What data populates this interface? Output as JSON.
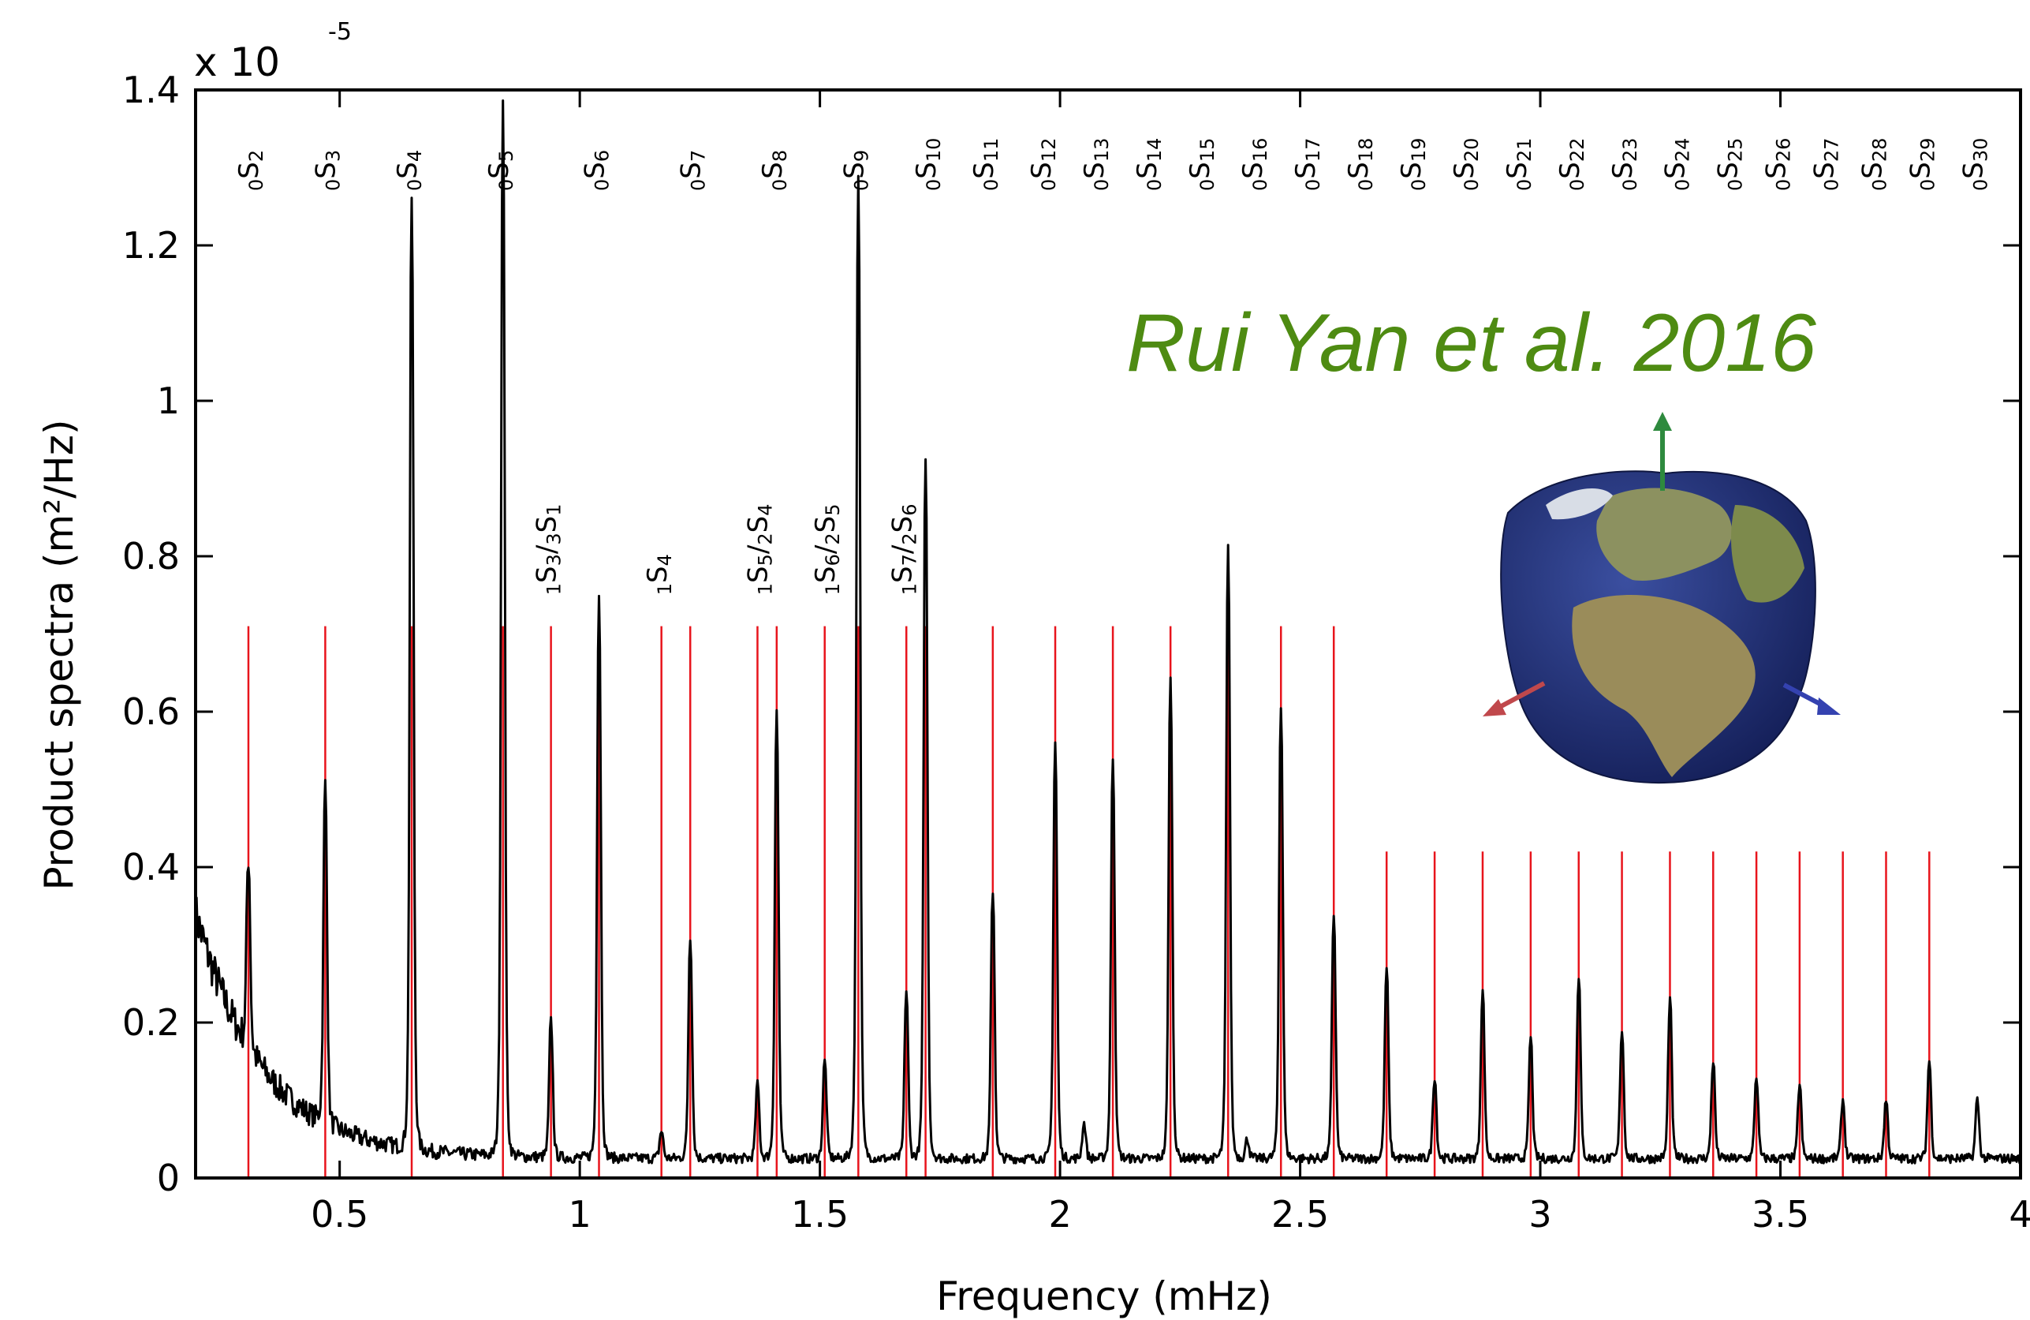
{
  "chart_data": {
    "type": "line",
    "title": "",
    "xlabel": "Frequency (mHz)",
    "ylabel": "Product spectra (m²/Hz)",
    "y_scale_label": "x 10",
    "y_scale_exponent": "-5",
    "xlim": [
      0.2,
      4.0
    ],
    "ylim": [
      0,
      1.4
    ],
    "x_ticks": [
      {
        "value": 0.5,
        "label": "0.5"
      },
      {
        "value": 1.0,
        "label": "1"
      },
      {
        "value": 1.5,
        "label": "1.5"
      },
      {
        "value": 2.0,
        "label": "2"
      },
      {
        "value": 2.5,
        "label": "2.5"
      },
      {
        "value": 3.0,
        "label": "3"
      },
      {
        "value": 3.5,
        "label": "3.5"
      },
      {
        "value": 4.0,
        "label": "4"
      }
    ],
    "y_ticks": [
      {
        "value": 0,
        "label": "0"
      },
      {
        "value": 0.2,
        "label": "0.2"
      },
      {
        "value": 0.4,
        "label": "0.4"
      },
      {
        "value": 0.6,
        "label": "0.6"
      },
      {
        "value": 0.8,
        "label": "0.8"
      },
      {
        "value": 1.0,
        "label": "1"
      },
      {
        "value": 1.2,
        "label": "1.2"
      },
      {
        "value": 1.4,
        "label": "1.4"
      }
    ],
    "grid": false,
    "annotation": "Rui Yan et al. 2016",
    "background_curve": {
      "start": 0.34,
      "decay": 0.14,
      "floor": 0.025
    },
    "peaks": [
      {
        "x": 0.31,
        "y": 0.27
      },
      {
        "x": 0.47,
        "y": 0.46
      },
      {
        "x": 0.65,
        "y": 1.25
      },
      {
        "x": 0.84,
        "y": 1.38
      },
      {
        "x": 0.94,
        "y": 0.2
      },
      {
        "x": 1.04,
        "y": 0.75
      },
      {
        "x": 1.17,
        "y": 0.06
      },
      {
        "x": 1.23,
        "y": 0.31
      },
      {
        "x": 1.37,
        "y": 0.12
      },
      {
        "x": 1.41,
        "y": 0.6
      },
      {
        "x": 1.51,
        "y": 0.15
      },
      {
        "x": 1.58,
        "y": 1.29
      },
      {
        "x": 1.68,
        "y": 0.24
      },
      {
        "x": 1.72,
        "y": 0.93
      },
      {
        "x": 1.86,
        "y": 0.37
      },
      {
        "x": 1.99,
        "y": 0.56
      },
      {
        "x": 2.05,
        "y": 0.07
      },
      {
        "x": 2.11,
        "y": 0.54
      },
      {
        "x": 2.23,
        "y": 0.64
      },
      {
        "x": 2.35,
        "y": 0.81
      },
      {
        "x": 2.39,
        "y": 0.05
      },
      {
        "x": 2.46,
        "y": 0.61
      },
      {
        "x": 2.57,
        "y": 0.34
      },
      {
        "x": 2.68,
        "y": 0.27
      },
      {
        "x": 2.78,
        "y": 0.13
      },
      {
        "x": 2.88,
        "y": 0.24
      },
      {
        "x": 2.98,
        "y": 0.18
      },
      {
        "x": 3.08,
        "y": 0.26
      },
      {
        "x": 3.17,
        "y": 0.19
      },
      {
        "x": 3.27,
        "y": 0.23
      },
      {
        "x": 3.36,
        "y": 0.15
      },
      {
        "x": 3.45,
        "y": 0.13
      },
      {
        "x": 3.54,
        "y": 0.12
      },
      {
        "x": 3.63,
        "y": 0.1
      },
      {
        "x": 3.72,
        "y": 0.1
      },
      {
        "x": 3.81,
        "y": 0.15
      },
      {
        "x": 3.91,
        "y": 0.1
      }
    ],
    "reference_lines": [
      {
        "x": 0.31,
        "top": 0.71
      },
      {
        "x": 0.47,
        "top": 0.71
      },
      {
        "x": 0.65,
        "top": 0.71
      },
      {
        "x": 0.84,
        "top": 0.71
      },
      {
        "x": 0.94,
        "top": 0.71
      },
      {
        "x": 1.04,
        "top": 0.71
      },
      {
        "x": 1.17,
        "top": 0.71
      },
      {
        "x": 1.23,
        "top": 0.71
      },
      {
        "x": 1.37,
        "top": 0.71
      },
      {
        "x": 1.41,
        "top": 0.71
      },
      {
        "x": 1.51,
        "top": 0.71
      },
      {
        "x": 1.58,
        "top": 0.71
      },
      {
        "x": 1.68,
        "top": 0.71
      },
      {
        "x": 1.72,
        "top": 0.71
      },
      {
        "x": 1.86,
        "top": 0.71
      },
      {
        "x": 1.99,
        "top": 0.71
      },
      {
        "x": 2.11,
        "top": 0.71
      },
      {
        "x": 2.23,
        "top": 0.71
      },
      {
        "x": 2.35,
        "top": 0.71
      },
      {
        "x": 2.46,
        "top": 0.71
      },
      {
        "x": 2.57,
        "top": 0.71
      },
      {
        "x": 2.68,
        "top": 0.42
      },
      {
        "x": 2.78,
        "top": 0.42
      },
      {
        "x": 2.88,
        "top": 0.42
      },
      {
        "x": 2.98,
        "top": 0.42
      },
      {
        "x": 3.08,
        "top": 0.42
      },
      {
        "x": 3.17,
        "top": 0.42
      },
      {
        "x": 3.27,
        "top": 0.42
      },
      {
        "x": 3.36,
        "top": 0.42
      },
      {
        "x": 3.45,
        "top": 0.42
      },
      {
        "x": 3.54,
        "top": 0.42
      },
      {
        "x": 3.63,
        "top": 0.42
      },
      {
        "x": 3.72,
        "top": 0.42
      },
      {
        "x": 3.81,
        "top": 0.42
      }
    ],
    "mode_labels": [
      {
        "x": 0.33,
        "y": 1.27,
        "pre": "0",
        "main": "S",
        "sub": "2"
      },
      {
        "x": 0.49,
        "y": 1.27,
        "pre": "0",
        "main": "S",
        "sub": "3"
      },
      {
        "x": 0.66,
        "y": 1.27,
        "pre": "0",
        "main": "S",
        "sub": "4"
      },
      {
        "x": 0.85,
        "y": 1.27,
        "pre": "0",
        "main": "S",
        "sub": "5"
      },
      {
        "x": 1.05,
        "y": 1.27,
        "pre": "0",
        "main": "S",
        "sub": "6"
      },
      {
        "x": 1.25,
        "y": 1.27,
        "pre": "0",
        "main": "S",
        "sub": "7"
      },
      {
        "x": 1.42,
        "y": 1.27,
        "pre": "0",
        "main": "S",
        "sub": "8"
      },
      {
        "x": 1.59,
        "y": 1.27,
        "pre": "0",
        "main": "S",
        "sub": "9"
      },
      {
        "x": 1.74,
        "y": 1.27,
        "pre": "0",
        "main": "S",
        "sub": "10"
      },
      {
        "x": 1.86,
        "y": 1.27,
        "pre": "0",
        "main": "S",
        "sub": "11"
      },
      {
        "x": 1.98,
        "y": 1.27,
        "pre": "0",
        "main": "S",
        "sub": "12"
      },
      {
        "x": 2.09,
        "y": 1.27,
        "pre": "0",
        "main": "S",
        "sub": "13"
      },
      {
        "x": 2.2,
        "y": 1.27,
        "pre": "0",
        "main": "S",
        "sub": "14"
      },
      {
        "x": 2.31,
        "y": 1.27,
        "pre": "0",
        "main": "S",
        "sub": "15"
      },
      {
        "x": 2.42,
        "y": 1.27,
        "pre": "0",
        "main": "S",
        "sub": "16"
      },
      {
        "x": 2.53,
        "y": 1.27,
        "pre": "0",
        "main": "S",
        "sub": "17"
      },
      {
        "x": 2.64,
        "y": 1.27,
        "pre": "0",
        "main": "S",
        "sub": "18"
      },
      {
        "x": 2.75,
        "y": 1.27,
        "pre": "0",
        "main": "S",
        "sub": "19"
      },
      {
        "x": 2.86,
        "y": 1.27,
        "pre": "0",
        "main": "S",
        "sub": "20"
      },
      {
        "x": 2.97,
        "y": 1.27,
        "pre": "0",
        "main": "S",
        "sub": "21"
      },
      {
        "x": 3.08,
        "y": 1.27,
        "pre": "0",
        "main": "S",
        "sub": "22"
      },
      {
        "x": 3.19,
        "y": 1.27,
        "pre": "0",
        "main": "S",
        "sub": "23"
      },
      {
        "x": 3.3,
        "y": 1.27,
        "pre": "0",
        "main": "S",
        "sub": "24"
      },
      {
        "x": 3.41,
        "y": 1.27,
        "pre": "0",
        "main": "S",
        "sub": "25"
      },
      {
        "x": 3.51,
        "y": 1.27,
        "pre": "0",
        "main": "S",
        "sub": "26"
      },
      {
        "x": 3.61,
        "y": 1.27,
        "pre": "0",
        "main": "S",
        "sub": "27"
      },
      {
        "x": 3.71,
        "y": 1.27,
        "pre": "0",
        "main": "S",
        "sub": "28"
      },
      {
        "x": 3.81,
        "y": 1.27,
        "pre": "0",
        "main": "S",
        "sub": "29"
      },
      {
        "x": 3.92,
        "y": 1.27,
        "pre": "0",
        "main": "S",
        "sub": "30"
      },
      {
        "x": 0.95,
        "y": 0.75,
        "pre": "1",
        "main": "S",
        "sub": "3",
        "main2": "/",
        "pre2": "3",
        "main3": "S",
        "sub2": "1"
      },
      {
        "x": 1.18,
        "y": 0.75,
        "pre": "1",
        "main": "S",
        "sub": "4"
      },
      {
        "x": 1.39,
        "y": 0.75,
        "pre": "1",
        "main": "S",
        "sub": "5",
        "main2": "/",
        "pre2": "2",
        "main3": "S",
        "sub2": "4"
      },
      {
        "x": 1.53,
        "y": 0.75,
        "pre": "1",
        "main": "S",
        "sub": "6",
        "main2": "/",
        "pre2": "2",
        "main3": "S",
        "sub2": "5"
      },
      {
        "x": 1.69,
        "y": 0.75,
        "pre": "1",
        "main": "S",
        "sub": "7",
        "main2": "/",
        "pre2": "2",
        "main3": "S",
        "sub2": "6"
      }
    ],
    "colors": {
      "curve": "#000000",
      "reference_lines": "#e8141c",
      "annotation": "#4e8b12",
      "globe_ocean": "#24357a",
      "globe_land": "#7f8a4a",
      "arrow_up": "#2e8a3e",
      "arrow_left": "#c0484c",
      "arrow_right": "#3442b0"
    }
  }
}
